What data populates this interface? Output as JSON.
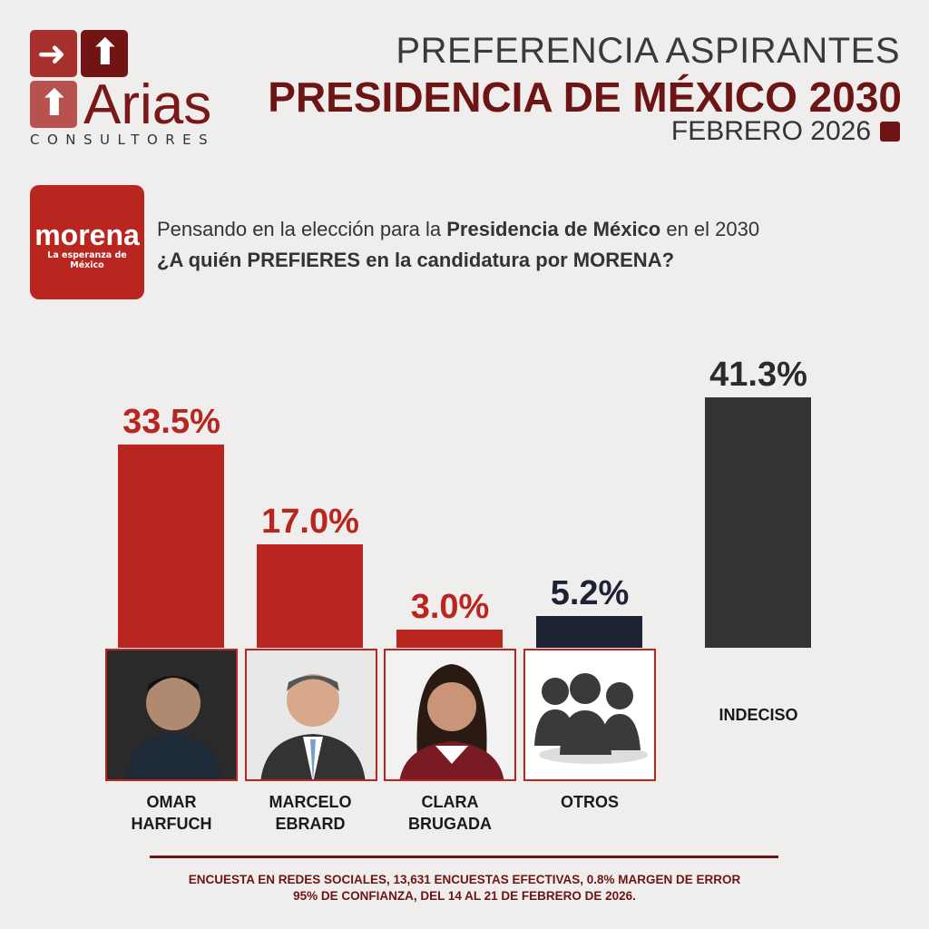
{
  "brand": {
    "name": "Arias",
    "sub": "CONSULTORES"
  },
  "header": {
    "line1": "PREFERENCIA ASPIRANTES",
    "line2": "PRESIDENCIA DE MÉXICO 2030",
    "line3": "FEBRERO 2026"
  },
  "party": {
    "name": "morena",
    "tagline": "La esperanza de México"
  },
  "question": {
    "pre": "Pensando en la elección para la ",
    "bold": "Presidencia de México",
    "post": " en el 2030",
    "line2": "¿A quién PREFIERES en la candidatura por MORENA?"
  },
  "chart_data": {
    "type": "bar",
    "categories": [
      "OMAR HARFUCH",
      "MARCELO EBRARD",
      "CLARA BRUGADA",
      "OTROS",
      "INDECISO"
    ],
    "name_lines": [
      [
        "OMAR",
        "HARFUCH"
      ],
      [
        "MARCELO",
        "EBRARD"
      ],
      [
        "CLARA",
        "BRUGADA"
      ],
      [
        "OTROS",
        ""
      ],
      [
        "INDECISO",
        ""
      ]
    ],
    "values": [
      33.5,
      17.0,
      3.0,
      5.2,
      41.3
    ],
    "labels": [
      "33.5%",
      "17.0%",
      "3.0%",
      "5.2%",
      "41.3%"
    ],
    "colors": [
      "#b8261f",
      "#b8261f",
      "#b8261f",
      "#1e2235",
      "#333333"
    ],
    "label_colors": [
      "#b8261f",
      "#b8261f",
      "#b8261f",
      "#1e2235",
      "#2b2b2b"
    ],
    "ylim": [
      0,
      45
    ]
  },
  "footer": {
    "line1": "ENCUESTA EN REDES SOCIALES, 13,631 ENCUESTAS EFECTIVAS, 0.8% MARGEN DE ERROR",
    "line2": "95% DE CONFIANZA, DEL 14 AL 21 DE FEBRERO DE 2026."
  }
}
